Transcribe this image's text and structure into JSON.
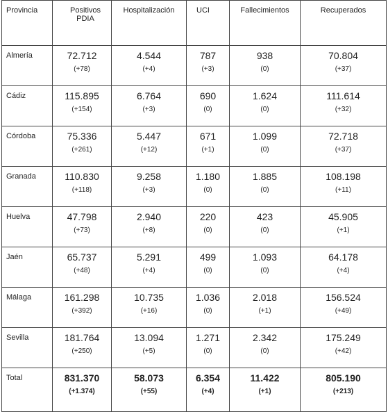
{
  "headers": [
    "Provincia",
    "Positivos\nPDIA",
    "Hospitalización",
    "UCI",
    "Fallecimientos",
    "Recuperados"
  ],
  "rows": [
    {
      "province": "Almería",
      "values": [
        "72.712",
        "4.544",
        "787",
        "938",
        "70.804"
      ],
      "deltas": [
        "(+78)",
        "(+4)",
        "(+3)",
        "(0)",
        "(+37)"
      ]
    },
    {
      "province": "Cádiz",
      "values": [
        "115.895",
        "6.764",
        "690",
        "1.624",
        "111.614"
      ],
      "deltas": [
        "(+154)",
        "(+3)",
        "(0)",
        "(0)",
        "(+32)"
      ]
    },
    {
      "province": "Córdoba",
      "values": [
        "75.336",
        "5.447",
        "671",
        "1.099",
        "72.718"
      ],
      "deltas": [
        "(+261)",
        "(+12)",
        "(+1)",
        "(0)",
        "(+37)"
      ]
    },
    {
      "province": "Granada",
      "values": [
        "110.830",
        "9.258",
        "1.180",
        "1.885",
        "108.198"
      ],
      "deltas": [
        "(+118)",
        "(+3)",
        "(0)",
        "(0)",
        "(+11)"
      ]
    },
    {
      "province": "Huelva",
      "values": [
        "47.798",
        "2.940",
        "220",
        "423",
        "45.905"
      ],
      "deltas": [
        "(+73)",
        "(+8)",
        "(0)",
        "(0)",
        "(+1)"
      ]
    },
    {
      "province": "Jaén",
      "values": [
        "65.737",
        "5.291",
        "499",
        "1.093",
        "64.178"
      ],
      "deltas": [
        "(+48)",
        "(+4)",
        "(0)",
        "(0)",
        "(+4)"
      ]
    },
    {
      "province": "Málaga",
      "values": [
        "161.298",
        "10.735",
        "1.036",
        "2.018",
        "156.524"
      ],
      "deltas": [
        "(+392)",
        "(+16)",
        "(0)",
        "(+1)",
        "(+49)"
      ]
    },
    {
      "province": "Sevilla",
      "values": [
        "181.764",
        "13.094",
        "1.271",
        "2.342",
        "175.249"
      ],
      "deltas": [
        "(+250)",
        "(+5)",
        "(0)",
        "(0)",
        "(+42)"
      ]
    }
  ],
  "total": {
    "label": "Total",
    "values": [
      "831.370",
      "58.073",
      "6.354",
      "11.422",
      "805.190"
    ],
    "deltas": [
      "(+1.374)",
      "(+55)",
      "(+4)",
      "(+1)",
      "(+213)"
    ]
  }
}
